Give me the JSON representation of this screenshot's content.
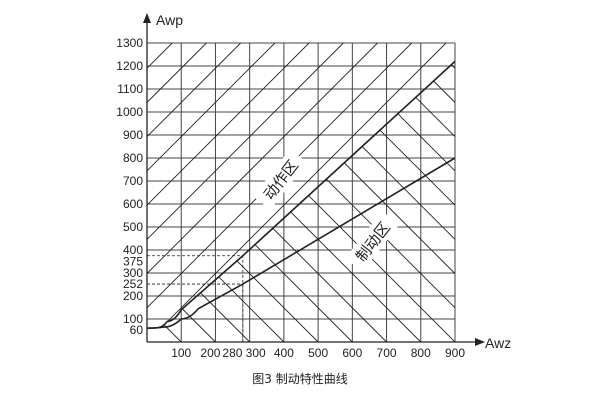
{
  "chart_data": {
    "type": "line",
    "title": "",
    "caption": "图3  制动特性曲线",
    "xlabel": "Awz",
    "ylabel": "Awp",
    "xlim": [
      0,
      900
    ],
    "ylim": [
      0,
      1300
    ],
    "grid": true,
    "x_ticks": [
      100,
      200,
      280,
      300,
      400,
      500,
      600,
      700,
      800,
      900
    ],
    "y_ticks": [
      60,
      100,
      200,
      252,
      300,
      375,
      400,
      500,
      600,
      700,
      800,
      900,
      1000,
      1100,
      1200,
      1300
    ],
    "x_tick_labels": [
      "100",
      "200",
      "280",
      "300",
      "400",
      "500",
      "600",
      "700",
      "800",
      "900"
    ],
    "y_tick_labels": [
      "60",
      "100",
      "200",
      "252",
      "300",
      "375",
      "400",
      "500",
      "600",
      "700",
      "800",
      "900",
      "1000",
      "1100",
      "1200",
      "1300"
    ],
    "series": [
      {
        "x": [
          0,
          30,
          60,
          100,
          280,
          900
        ],
        "y": [
          60,
          62,
          90,
          140,
          375,
          1220
        ]
      },
      {
        "x": [
          0,
          50,
          100,
          150,
          280,
          900
        ],
        "y": [
          60,
          65,
          100,
          145,
          252,
          800
        ]
      }
    ],
    "reference_points": [
      {
        "x": 280,
        "y": 375
      },
      {
        "x": 280,
        "y": 252
      }
    ],
    "regions": [
      {
        "label": "动作区",
        "hatch": "rising diagonal, above upper curve"
      },
      {
        "label": "制动区",
        "hatch": "falling diagonal, below upper curve"
      }
    ],
    "colors": {
      "ink": "#222222",
      "grid": "#444444"
    }
  }
}
